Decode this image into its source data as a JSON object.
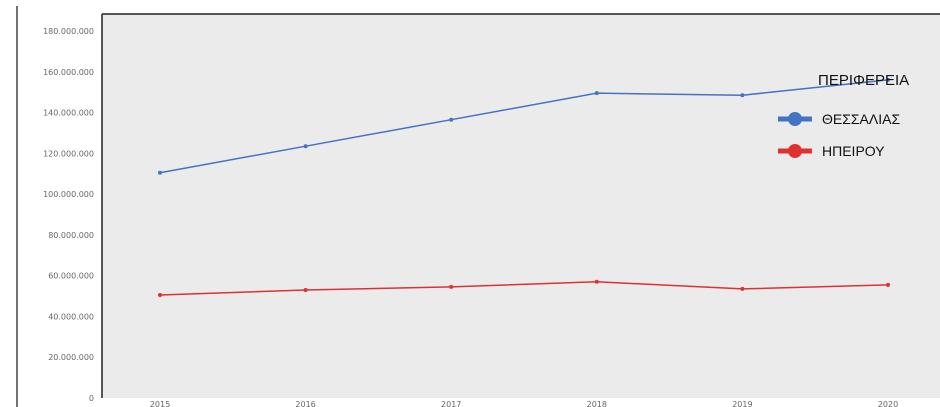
{
  "chart_data": {
    "type": "line",
    "title": "",
    "xlabel": "",
    "ylabel": "",
    "categories": [
      "2015",
      "2016",
      "2017",
      "2018",
      "2019",
      "2020"
    ],
    "ylim": [
      0,
      180000000
    ],
    "yticks": [
      {
        "value": 0,
        "label": "0"
      },
      {
        "value": 20000000,
        "label": "20.000.000"
      },
      {
        "value": 40000000,
        "label": "40.000.000"
      },
      {
        "value": 60000000,
        "label": "60.000.000"
      },
      {
        "value": 80000000,
        "label": "80.000.000"
      },
      {
        "value": 100000000,
        "label": "100.000.000"
      },
      {
        "value": 120000000,
        "label": "120.000.000"
      },
      {
        "value": 140000000,
        "label": "140.000.000"
      },
      {
        "value": 160000000,
        "label": "160.000.000"
      },
      {
        "value": 180000000,
        "label": "180.000.000"
      }
    ],
    "grid": false,
    "legend": {
      "title": "ΠΕΡΙΦΕΡΕΙΑ",
      "placement": "top-right"
    },
    "series": [
      {
        "name": "ΘΕΣΣΑΛΙΑΣ",
        "color": "#4472c4",
        "values": [
          110500000,
          123500000,
          136500000,
          149500000,
          148500000,
          156000000
        ]
      },
      {
        "name": "ΗΠΕΙΡΟΥ",
        "color": "#e03030",
        "values": [
          50500000,
          53000000,
          54500000,
          57000000,
          53500000,
          55500000
        ]
      }
    ],
    "colors": {
      "plot_background": "#ebebeb",
      "axis": "#222222"
    }
  }
}
